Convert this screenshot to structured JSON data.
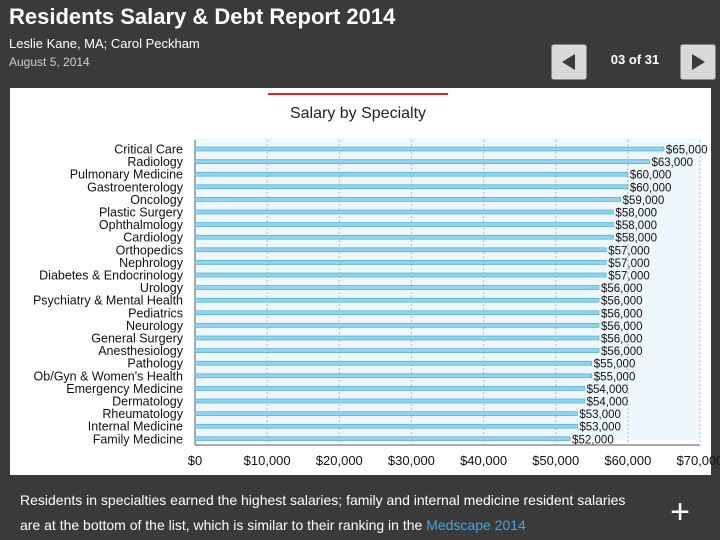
{
  "header": {
    "title": "Residents Salary & Debt Report 2014",
    "authors": "Leslie Kane, MA; Carol Peckham",
    "date": "August 5, 2014"
  },
  "nav": {
    "prev_icon": "arrow-left-icon",
    "next_icon": "arrow-right-icon",
    "counter": "03 of 31"
  },
  "chart_data": {
    "type": "bar",
    "orientation": "horizontal",
    "title": "Salary by Specialty",
    "categories": [
      "Critical Care",
      "Radiology",
      "Pulmonary Medicine",
      "Gastroenterology",
      "Oncology",
      "Plastic Surgery",
      "Ophthalmology",
      "Cardiology",
      "Orthopedics",
      "Nephrology",
      "Diabetes & Endocrinology",
      "Urology",
      "Psychiatry & Mental Health",
      "Pediatrics",
      "Neurology",
      "General Surgery",
      "Anesthesiology",
      "Pathology",
      "Ob/Gyn & Women's Health",
      "Emergency Medicine",
      "Dermatology",
      "Rheumatology",
      "Internal Medicine",
      "Family Medicine"
    ],
    "values": [
      65000,
      63000,
      60000,
      60000,
      59000,
      58000,
      58000,
      58000,
      57000,
      57000,
      57000,
      56000,
      56000,
      56000,
      56000,
      56000,
      56000,
      55000,
      55000,
      54000,
      54000,
      53000,
      53000,
      52000
    ],
    "value_labels": [
      "$65,000",
      "$63,000",
      "$60,000",
      "$60,000",
      "$59,000",
      "$58,000",
      "$58,000",
      "$58,000",
      "$57,000",
      "$57,000",
      "$57,000",
      "$56,000",
      "$56,000",
      "$56,000",
      "$56,000",
      "$56,000",
      "$56,000",
      "$55,000",
      "$55,000",
      "$54,000",
      "$54,000",
      "$53,000",
      "$53,000",
      "$52,000"
    ],
    "xlim": [
      0,
      70000
    ],
    "x_ticks": [
      0,
      10000,
      20000,
      30000,
      40000,
      50000,
      60000,
      70000
    ],
    "x_tick_labels": [
      "$0",
      "$10,000",
      "$20,000",
      "$30,000",
      "$40,000",
      "$50,000",
      "$60,000",
      "$70,000"
    ],
    "grid": true,
    "bar_color": "#8dd4ee",
    "accent_color": "#d9262b"
  },
  "caption": {
    "text": "Residents in specialties earned the highest salaries; family and internal medicine resident salaries are at the bottom of the list, which is similar to their ranking in the ",
    "link": "Medscape 2014"
  },
  "expand_icon": "plus-icon"
}
